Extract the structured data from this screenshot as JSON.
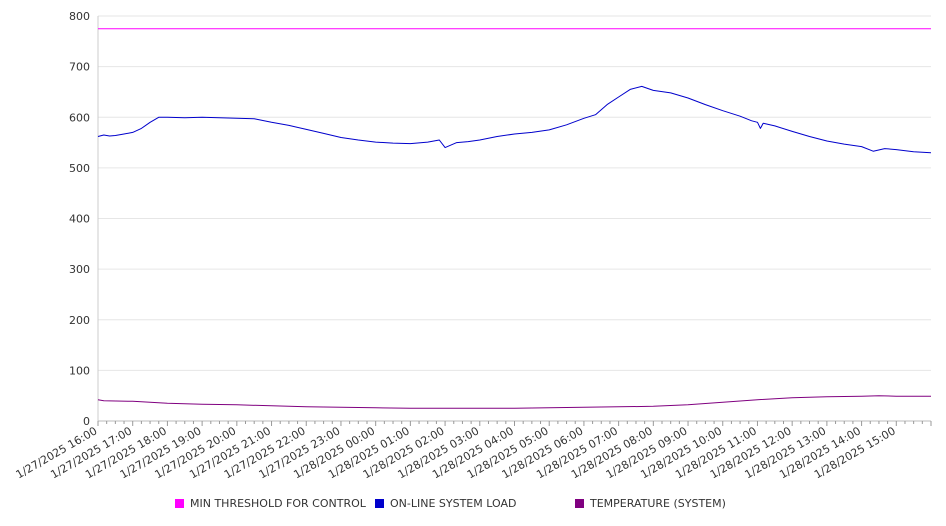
{
  "chart_data": {
    "type": "line",
    "ylim": [
      0,
      800
    ],
    "yticks": [
      0,
      100,
      200,
      300,
      400,
      500,
      600,
      700,
      800
    ],
    "grid": true,
    "xlim": [
      "1/27/2025 16:00",
      "1/28/2025 16:00"
    ],
    "xticks": [
      "1/27/2025 16:00",
      "1/27/2025 17:00",
      "1/27/2025 18:00",
      "1/27/2025 19:00",
      "1/27/2025 20:00",
      "1/27/2025 21:00",
      "1/27/2025 22:00",
      "1/27/2025 23:00",
      "1/28/2025 00:00",
      "1/28/2025 01:00",
      "1/28/2025 02:00",
      "1/28/2025 03:00",
      "1/28/2025 04:00",
      "1/28/2025 05:00",
      "1/28/2025 06:00",
      "1/28/2025 07:00",
      "1/28/2025 08:00",
      "1/28/2025 09:00",
      "1/28/2025 10:00",
      "1/28/2025 11:00",
      "1/28/2025 12:00",
      "1/28/2025 13:00",
      "1/28/2025 14:00",
      "1/28/2025 15:00"
    ],
    "legend_position": "bottom",
    "series": [
      {
        "name": "MIN THRESHOLD FOR CONTROL",
        "color": "#ff00ff",
        "points": [
          [
            "1/27/2025 16:00",
            775
          ],
          [
            "1/28/2025 16:00",
            775
          ]
        ]
      },
      {
        "name": "ON-LINE SYSTEM LOAD",
        "color": "#0000cc",
        "points": [
          [
            "1/27/2025 16:00",
            562
          ],
          [
            "1/27/2025 16:10",
            565
          ],
          [
            "1/27/2025 16:20",
            563
          ],
          [
            "1/27/2025 16:30",
            564
          ],
          [
            "1/27/2025 16:45",
            567
          ],
          [
            "1/27/2025 17:00",
            570
          ],
          [
            "1/27/2025 17:15",
            578
          ],
          [
            "1/27/2025 17:30",
            590
          ],
          [
            "1/27/2025 17:45",
            600
          ],
          [
            "1/27/2025 18:00",
            600
          ],
          [
            "1/27/2025 18:30",
            599
          ],
          [
            "1/27/2025 19:00",
            600
          ],
          [
            "1/27/2025 19:30",
            599
          ],
          [
            "1/27/2025 20:00",
            598
          ],
          [
            "1/27/2025 20:30",
            597
          ],
          [
            "1/27/2025 21:00",
            590
          ],
          [
            "1/27/2025 21:30",
            584
          ],
          [
            "1/27/2025 22:00",
            576
          ],
          [
            "1/27/2025 22:30",
            568
          ],
          [
            "1/27/2025 23:00",
            560
          ],
          [
            "1/27/2025 23:30",
            555
          ],
          [
            "1/28/2025 00:00",
            551
          ],
          [
            "1/28/2025 00:30",
            549
          ],
          [
            "1/28/2025 01:00",
            548
          ],
          [
            "1/28/2025 01:30",
            551
          ],
          [
            "1/28/2025 01:50",
            555
          ],
          [
            "1/28/2025 02:00",
            540
          ],
          [
            "1/28/2025 02:10",
            545
          ],
          [
            "1/28/2025 02:20",
            550
          ],
          [
            "1/28/2025 02:40",
            552
          ],
          [
            "1/28/2025 03:00",
            555
          ],
          [
            "1/28/2025 03:30",
            562
          ],
          [
            "1/28/2025 04:00",
            567
          ],
          [
            "1/28/2025 04:30",
            570
          ],
          [
            "1/28/2025 05:00",
            575
          ],
          [
            "1/28/2025 05:30",
            585
          ],
          [
            "1/28/2025 06:00",
            598
          ],
          [
            "1/28/2025 06:20",
            605
          ],
          [
            "1/28/2025 06:40",
            625
          ],
          [
            "1/28/2025 07:00",
            640
          ],
          [
            "1/28/2025 07:20",
            655
          ],
          [
            "1/28/2025 07:40",
            661
          ],
          [
            "1/28/2025 07:50",
            657
          ],
          [
            "1/28/2025 08:00",
            653
          ],
          [
            "1/28/2025 08:30",
            648
          ],
          [
            "1/28/2025 09:00",
            638
          ],
          [
            "1/28/2025 09:30",
            625
          ],
          [
            "1/28/2025 10:00",
            613
          ],
          [
            "1/28/2025 10:30",
            602
          ],
          [
            "1/28/2025 10:50",
            593
          ],
          [
            "1/28/2025 11:00",
            590
          ],
          [
            "1/28/2025 11:05",
            578
          ],
          [
            "1/28/2025 11:10",
            588
          ],
          [
            "1/28/2025 11:30",
            583
          ],
          [
            "1/28/2025 12:00",
            572
          ],
          [
            "1/28/2025 12:30",
            562
          ],
          [
            "1/28/2025 13:00",
            553
          ],
          [
            "1/28/2025 13:30",
            547
          ],
          [
            "1/28/2025 14:00",
            542
          ],
          [
            "1/28/2025 14:20",
            533
          ],
          [
            "1/28/2025 14:40",
            538
          ],
          [
            "1/28/2025 15:00",
            536
          ],
          [
            "1/28/2025 15:30",
            532
          ],
          [
            "1/28/2025 16:00",
            530
          ]
        ]
      },
      {
        "name": "TEMPERATURE (SYSTEM)",
        "color": "#800080",
        "points": [
          [
            "1/27/2025 16:00",
            42
          ],
          [
            "1/27/2025 16:10",
            40
          ],
          [
            "1/27/2025 17:00",
            39
          ],
          [
            "1/27/2025 18:00",
            35
          ],
          [
            "1/27/2025 19:00",
            33
          ],
          [
            "1/27/2025 20:00",
            32
          ],
          [
            "1/27/2025 21:00",
            30
          ],
          [
            "1/27/2025 22:00",
            28
          ],
          [
            "1/27/2025 23:00",
            27
          ],
          [
            "1/28/2025 00:00",
            26
          ],
          [
            "1/28/2025 01:00",
            25
          ],
          [
            "1/28/2025 02:00",
            25
          ],
          [
            "1/28/2025 03:00",
            25
          ],
          [
            "1/28/2025 04:00",
            25
          ],
          [
            "1/28/2025 05:00",
            26
          ],
          [
            "1/28/2025 06:00",
            27
          ],
          [
            "1/28/2025 07:00",
            28
          ],
          [
            "1/28/2025 08:00",
            29
          ],
          [
            "1/28/2025 09:00",
            32
          ],
          [
            "1/28/2025 10:00",
            37
          ],
          [
            "1/28/2025 11:00",
            42
          ],
          [
            "1/28/2025 12:00",
            46
          ],
          [
            "1/28/2025 13:00",
            48
          ],
          [
            "1/28/2025 14:00",
            49
          ],
          [
            "1/28/2025 14:30",
            50
          ],
          [
            "1/28/2025 15:00",
            49
          ],
          [
            "1/28/2025 16:00",
            49
          ]
        ]
      }
    ]
  }
}
